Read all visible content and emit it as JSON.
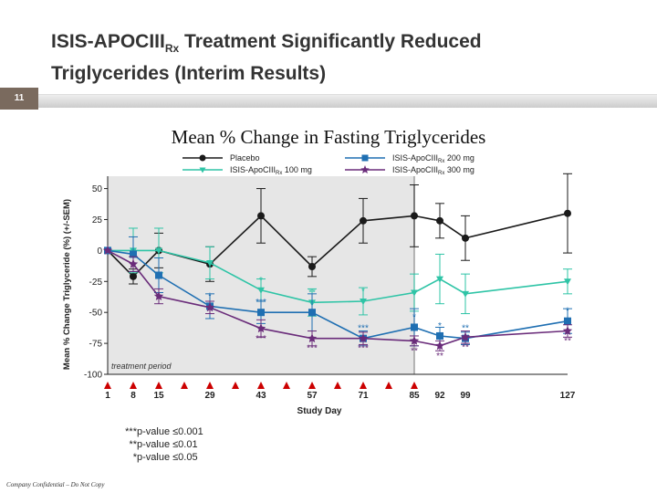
{
  "slide": {
    "title_line1_main": "ISIS-APOCIII",
    "title_line1_sub": "Rx",
    "title_line1_rest": " Treatment Significantly Reduced",
    "title_line2": "Triglycerides (Interim Results)",
    "page_number": "11",
    "footer": "Company Confidential – Do Not Copy"
  },
  "chart_data": {
    "type": "line",
    "title": "Mean % Change in Fasting Triglycerides",
    "xlabel": "Study Day",
    "ylabel": "Mean % Change Triglyceride (%) (+/-SEM)",
    "ylim": [
      -100,
      60
    ],
    "y_ticks": [
      50,
      25,
      0,
      -25,
      -50,
      -75,
      -100
    ],
    "x_ticks": [
      1,
      8,
      15,
      29,
      43,
      57,
      71,
      85,
      92,
      99,
      127
    ],
    "shaded_region_label": "treatment period",
    "shaded_region_days": [
      1,
      85
    ],
    "dosing_days": [
      1,
      8,
      15,
      22,
      29,
      36,
      43,
      50,
      57,
      64,
      71,
      78,
      85
    ],
    "series": [
      {
        "name": "Placebo",
        "color": "#1a1a1a",
        "marker": "circle",
        "x": [
          1,
          8,
          15,
          29,
          43,
          57,
          71,
          85,
          92,
          99,
          127
        ],
        "y": [
          0,
          -21,
          0,
          -11,
          28,
          -13,
          24,
          28,
          24,
          10,
          30
        ],
        "err": [
          0,
          6,
          14,
          14,
          22,
          8,
          18,
          25,
          14,
          18,
          32
        ]
      },
      {
        "name": "ISIS-ApoCIII 100 mg",
        "color": "#2ec4a6",
        "marker": "triangle-down",
        "x": [
          1,
          8,
          15,
          29,
          43,
          57,
          71,
          85,
          92,
          99,
          127
        ],
        "y": [
          0,
          0,
          0,
          -10,
          -32,
          -42,
          -41,
          -34,
          -23,
          -35,
          -25
        ],
        "err": [
          0,
          18,
          18,
          13,
          9,
          11,
          11,
          15,
          20,
          16,
          10
        ]
      },
      {
        "name": "ISIS-ApoCIII 200 mg",
        "color": "#1f6fb2",
        "marker": "square",
        "x": [
          1,
          8,
          15,
          29,
          43,
          57,
          71,
          85,
          92,
          99,
          127
        ],
        "y": [
          0,
          -3,
          -20,
          -45,
          -50,
          -50,
          -71,
          -62,
          -69,
          -71,
          -57
        ],
        "err": [
          0,
          14,
          14,
          10,
          9,
          15,
          6,
          15,
          7,
          5,
          10
        ]
      },
      {
        "name": "ISIS-ApoCIII 300 mg",
        "color": "#6a2c7a",
        "marker": "star",
        "x": [
          1,
          8,
          15,
          29,
          43,
          57,
          71,
          85,
          92,
          99,
          127
        ],
        "y": [
          0,
          -11,
          -37,
          -46,
          -63,
          -71,
          -71,
          -73,
          -77,
          -70,
          -65
        ],
        "err": [
          0,
          6,
          6,
          5,
          7,
          6,
          5,
          4,
          4,
          5,
          5
        ]
      }
    ],
    "legend": [
      {
        "label": "Placebo",
        "sub": "",
        "suffix": ""
      },
      {
        "label": "ISIS-ApoCIII",
        "sub": "Rx",
        "suffix": " 200 mg"
      },
      {
        "label": "ISIS-ApoCIII",
        "sub": "Rx",
        "suffix": " 100 mg"
      },
      {
        "label": "ISIS-ApoCIII",
        "sub": "Rx",
        "suffix": " 300 mg"
      }
    ],
    "significance_labels": [
      {
        "series": "ISIS-ApoCIII 100 mg",
        "x": 43,
        "text": "*",
        "pos": "above"
      },
      {
        "series": "ISIS-ApoCIII 100 mg",
        "x": 57,
        "text": "**",
        "pos": "above"
      },
      {
        "series": "ISIS-ApoCIII 100 mg",
        "x": 71,
        "text": "*",
        "pos": "above"
      },
      {
        "series": "ISIS-ApoCIII 200 mg",
        "x": 29,
        "text": "*",
        "pos": "above"
      },
      {
        "series": "ISIS-ApoCIII 200 mg",
        "x": 43,
        "text": "***",
        "pos": "above"
      },
      {
        "series": "ISIS-ApoCIII 200 mg",
        "x": 71,
        "text": "***",
        "pos": "above"
      },
      {
        "series": "ISIS-ApoCIII 200 mg",
        "x": 85,
        "text": "*",
        "pos": "above"
      },
      {
        "series": "ISIS-ApoCIII 200 mg",
        "x": 92,
        "text": "*",
        "pos": "above"
      },
      {
        "series": "ISIS-ApoCIII 200 mg",
        "x": 99,
        "text": "**",
        "pos": "above"
      },
      {
        "series": "ISIS-ApoCIII 200 mg",
        "x": 127,
        "text": "*",
        "pos": "above"
      },
      {
        "series": "ISIS-ApoCIII 300 mg",
        "x": 43,
        "text": "***",
        "pos": "below"
      },
      {
        "series": "ISIS-ApoCIII 300 mg",
        "x": 57,
        "text": "***",
        "pos": "below"
      },
      {
        "series": "ISIS-ApoCIII 300 mg",
        "x": 71,
        "text": "***",
        "pos": "below"
      },
      {
        "series": "ISIS-ApoCIII 300 mg",
        "x": 85,
        "text": "**",
        "pos": "below"
      },
      {
        "series": "ISIS-ApoCIII 300 mg",
        "x": 92,
        "text": "**",
        "pos": "below"
      },
      {
        "series": "ISIS-ApoCIII 300 mg",
        "x": 99,
        "text": "**",
        "pos": "below"
      },
      {
        "series": "ISIS-ApoCIII 300 mg",
        "x": 127,
        "text": "**",
        "pos": "below"
      }
    ],
    "pvalue_notes": [
      "*** p-value  ≤0.001",
      "** p-value  ≤0.01",
      "* p-value  ≤0.05"
    ]
  }
}
